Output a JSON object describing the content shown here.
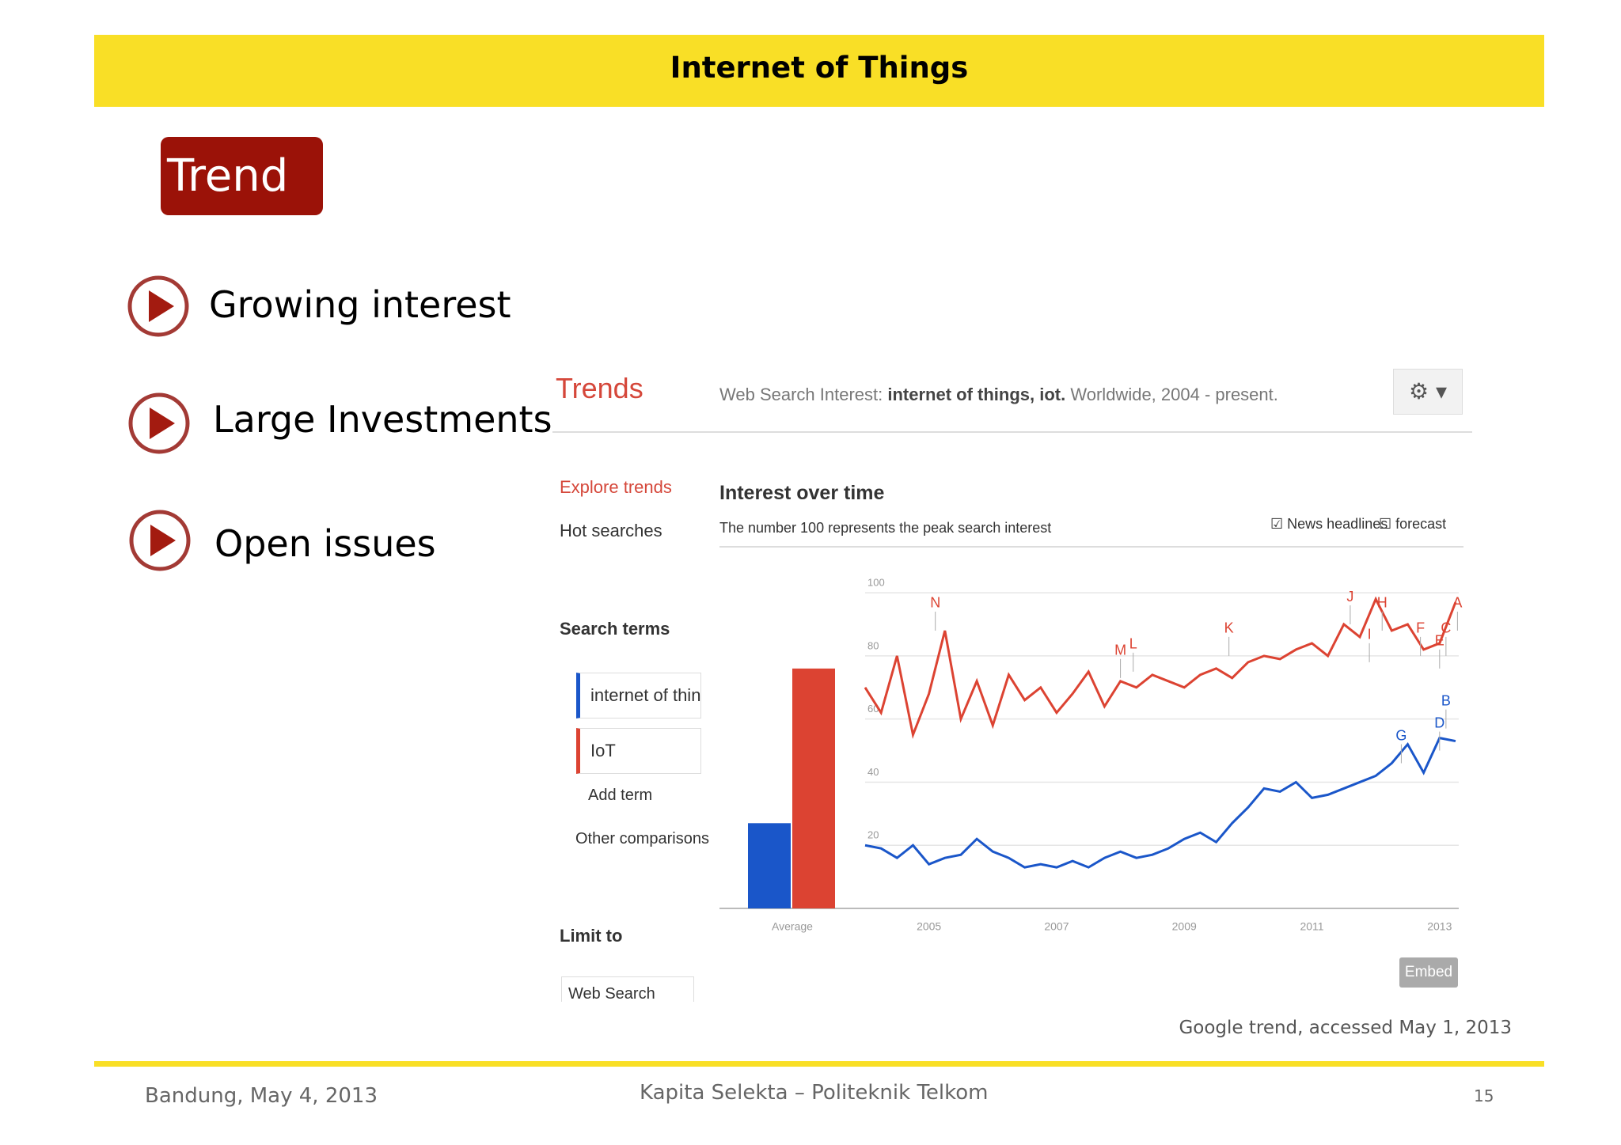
{
  "header": {
    "title": "Internet of Things"
  },
  "section": "Trend",
  "bullets": [
    "Growing interest",
    "Large Investments",
    "Open issues"
  ],
  "trends_ui": {
    "logo": "Trends",
    "summary_prefix": "Web Search Interest:",
    "summary_terms": "internet of things, iot.",
    "summary_suffix": "Worldwide, 2004 - present.",
    "nav": [
      "Explore trends",
      "Hot searches"
    ],
    "interest_title": "Interest over time",
    "interest_note": "The number 100 represents the peak search interest",
    "options": [
      "News headlines",
      "forecast"
    ],
    "search_terms_label": "Search terms",
    "terms": [
      "internet of thin",
      "IoT"
    ],
    "add_term": "Add term",
    "other": "Other comparisons",
    "limit_to": "Limit to",
    "web_search": "Web Search",
    "embed": "Embed"
  },
  "chart_data": {
    "type": "line",
    "xlim": [
      2004,
      2013.3
    ],
    "ylim": [
      0,
      100
    ],
    "xticks": [
      2005,
      2007,
      2009,
      2011,
      2013
    ],
    "yticks": [
      20,
      40,
      60,
      80,
      100
    ],
    "grid": true,
    "x": [
      2004,
      2004.25,
      2004.5,
      2004.75,
      2005,
      2005.25,
      2005.5,
      2005.75,
      2006,
      2006.25,
      2006.5,
      2006.75,
      2007,
      2007.25,
      2007.5,
      2007.75,
      2008,
      2008.25,
      2008.5,
      2008.75,
      2009,
      2009.25,
      2009.5,
      2009.75,
      2010,
      2010.25,
      2010.5,
      2010.75,
      2011,
      2011.25,
      2011.5,
      2011.75,
      2012,
      2012.25,
      2012.5,
      2012.75,
      2013,
      2013.25
    ],
    "series": [
      {
        "name": "internet of things",
        "color": "#1a56c9",
        "values": [
          20,
          19,
          16,
          20,
          14,
          16,
          17,
          22,
          18,
          16,
          13,
          14,
          13,
          15,
          13,
          16,
          18,
          16,
          17,
          19,
          22,
          24,
          21,
          27,
          32,
          38,
          37,
          40,
          35,
          36,
          38,
          40,
          42,
          46,
          52,
          43,
          54,
          53
        ]
      },
      {
        "name": "IoT",
        "color": "#dc4332",
        "values": [
          70,
          62,
          80,
          55,
          68,
          88,
          60,
          72,
          58,
          74,
          66,
          70,
          62,
          68,
          75,
          64,
          72,
          70,
          74,
          72,
          70,
          74,
          76,
          73,
          78,
          80,
          79,
          82,
          84,
          80,
          90,
          86,
          98,
          88,
          90,
          82,
          84,
          97
        ]
      }
    ],
    "average_label": "Average",
    "averages": [
      27,
      76
    ],
    "annotations": [
      {
        "label": "N",
        "x": 2005.1,
        "y": 88,
        "series": 1
      },
      {
        "label": "M",
        "x": 2008.0,
        "y": 73,
        "series": 1
      },
      {
        "label": "L",
        "x": 2008.2,
        "y": 75,
        "series": 1
      },
      {
        "label": "K",
        "x": 2009.7,
        "y": 80,
        "series": 1
      },
      {
        "label": "J",
        "x": 2011.6,
        "y": 90,
        "series": 1
      },
      {
        "label": "I",
        "x": 2011.9,
        "y": 78,
        "series": 1
      },
      {
        "label": "H",
        "x": 2012.1,
        "y": 88,
        "series": 1
      },
      {
        "label": "F",
        "x": 2012.7,
        "y": 80,
        "series": 1
      },
      {
        "label": "E",
        "x": 2013.0,
        "y": 76,
        "series": 1
      },
      {
        "label": "C",
        "x": 2013.1,
        "y": 80,
        "series": 1
      },
      {
        "label": "A",
        "x": 2013.28,
        "y": 88,
        "series": 1
      },
      {
        "label": "G",
        "x": 2012.4,
        "y": 46,
        "series": 0
      },
      {
        "label": "D",
        "x": 2013.0,
        "y": 50,
        "series": 0
      },
      {
        "label": "B",
        "x": 2013.1,
        "y": 57,
        "series": 0
      }
    ]
  },
  "caption": "Google trend, accessed May 1, 2013",
  "footer": {
    "left": "Bandung, May 4, 2013",
    "center": "Kapita Selekta – Politeknik Telkom",
    "page": "15"
  }
}
